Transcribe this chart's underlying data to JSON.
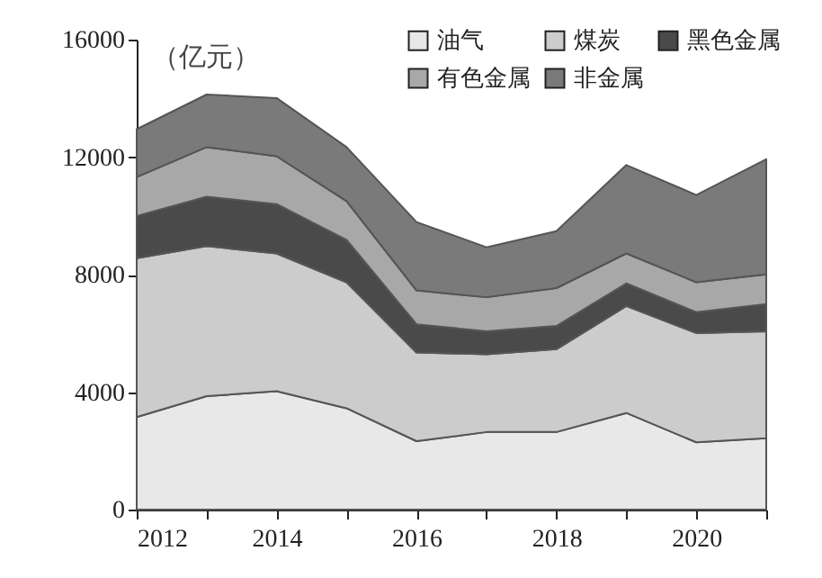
{
  "chart_data": {
    "type": "area",
    "stacked": true,
    "ylabel": "（亿元）",
    "x": [
      2012,
      2013,
      2014,
      2015,
      2016,
      2017,
      2018,
      2019,
      2020,
      2021
    ],
    "xlim": [
      2012,
      2021
    ],
    "xticks": [
      2012,
      {
        "value": 2013,
        "label": null
      },
      2014,
      {
        "value": 2015,
        "label": null
      },
      2016,
      {
        "value": 2017,
        "label": null
      },
      2018,
      {
        "value": 2019,
        "label": null
      },
      2020,
      {
        "value": 2021,
        "label": null
      }
    ],
    "ylim": [
      0,
      16000
    ],
    "yticks": [
      0,
      4000,
      8000,
      12000,
      16000
    ],
    "grid": false,
    "legend": "top right",
    "series": [
      {
        "name": "油气",
        "color": "#e8e8e8",
        "values": [
          3150,
          3860,
          4030,
          3450,
          2330,
          2640,
          2640,
          3290,
          2290,
          2430
        ]
      },
      {
        "name": "煤炭",
        "color": "#cccccc",
        "values": [
          5410,
          5110,
          4690,
          4290,
          3020,
          2650,
          2820,
          3640,
          3720,
          3640
        ]
      },
      {
        "name": "黑色金属",
        "color": "#4a4a4a",
        "values": [
          1430,
          1680,
          1680,
          1440,
          960,
          780,
          790,
          770,
          710,
          930
        ]
      },
      {
        "name": "有色金属",
        "color": "#a8a8a8",
        "values": [
          1330,
          1690,
          1630,
          1320,
          1150,
          1160,
          1290,
          1020,
          1020,
          1010
        ]
      },
      {
        "name": "非金属",
        "color": "#7a7a7a",
        "values": [
          1630,
          1790,
          1980,
          1840,
          2330,
          1700,
          1940,
          3010,
          2970,
          3920
        ]
      }
    ]
  }
}
